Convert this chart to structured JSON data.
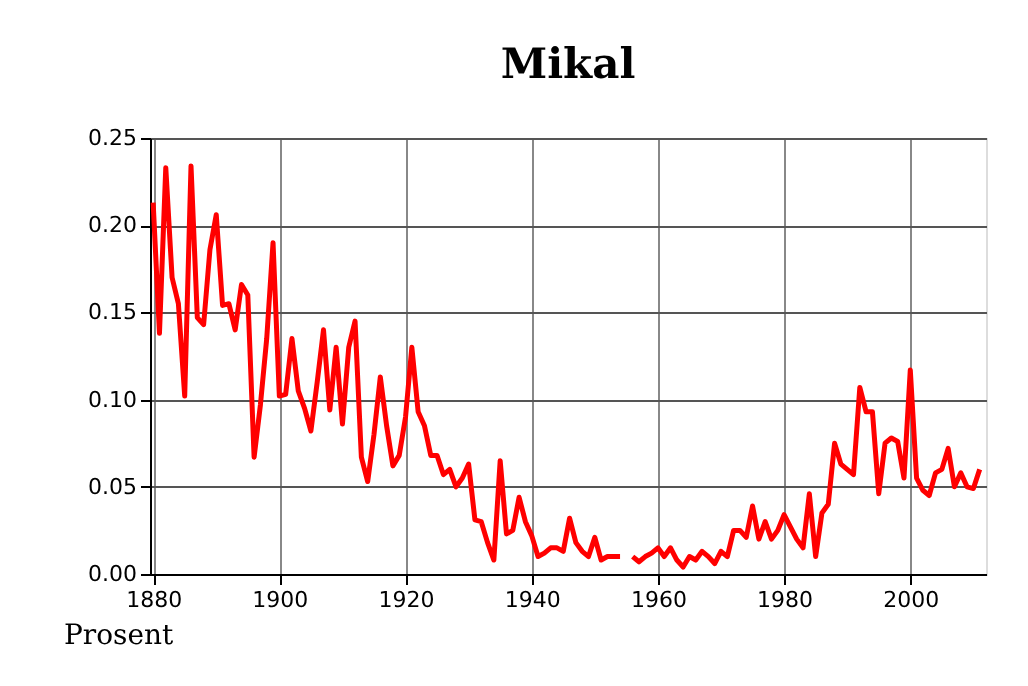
{
  "chart_data": {
    "type": "line",
    "title": "Mikal",
    "annotations": [
      "Prosent"
    ],
    "x": [
      1880,
      1881,
      1882,
      1883,
      1884,
      1885,
      1886,
      1887,
      1888,
      1889,
      1890,
      1891,
      1892,
      1893,
      1894,
      1895,
      1896,
      1897,
      1898,
      1899,
      1900,
      1901,
      1902,
      1903,
      1904,
      1905,
      1906,
      1907,
      1908,
      1909,
      1910,
      1911,
      1912,
      1913,
      1914,
      1915,
      1916,
      1917,
      1918,
      1919,
      1920,
      1921,
      1922,
      1923,
      1924,
      1925,
      1926,
      1927,
      1928,
      1929,
      1930,
      1931,
      1932,
      1933,
      1934,
      1935,
      1936,
      1937,
      1938,
      1939,
      1940,
      1941,
      1942,
      1943,
      1944,
      1945,
      1946,
      1947,
      1948,
      1949,
      1950,
      1951,
      1952,
      1953,
      1954,
      1955,
      1956,
      1957,
      1958,
      1959,
      1960,
      1961,
      1962,
      1963,
      1964,
      1965,
      1966,
      1967,
      1968,
      1969,
      1970,
      1971,
      1972,
      1973,
      1974,
      1975,
      1976,
      1977,
      1978,
      1979,
      1980,
      1981,
      1982,
      1983,
      1984,
      1985,
      1986,
      1987,
      1988,
      1989,
      1990,
      1991,
      1992,
      1993,
      1994,
      1995,
      1996,
      1997,
      1998,
      1999,
      2000,
      2001,
      2002,
      2003,
      2004,
      2005,
      2006,
      2007,
      2008,
      2009,
      2010,
      2011
    ],
    "series": [
      {
        "color": "#ff0000",
        "values": [
          0.213,
          0.138,
          0.233,
          0.17,
          0.155,
          0.102,
          0.234,
          0.147,
          0.143,
          0.186,
          0.206,
          0.154,
          0.155,
          0.14,
          0.166,
          0.16,
          0.067,
          0.097,
          0.135,
          0.19,
          0.102,
          0.103,
          0.135,
          0.105,
          0.095,
          0.082,
          0.11,
          0.14,
          0.094,
          0.13,
          0.086,
          0.13,
          0.145,
          0.067,
          0.053,
          0.08,
          0.113,
          0.085,
          0.062,
          0.068,
          0.09,
          0.13,
          0.093,
          0.085,
          0.068,
          0.068,
          0.057,
          0.06,
          0.05,
          0.055,
          0.063,
          0.031,
          0.03,
          0.018,
          0.008,
          0.065,
          0.023,
          0.025,
          0.044,
          0.03,
          0.022,
          0.01,
          0.012,
          0.015,
          0.015,
          0.013,
          0.032,
          0.018,
          0.013,
          0.01,
          0.021,
          0.008,
          0.01,
          0.01,
          0.01,
          null,
          0.01,
          0.007,
          0.01,
          0.012,
          0.015,
          0.01,
          0.015,
          0.008,
          0.004,
          0.01,
          0.008,
          0.013,
          0.01,
          0.006,
          0.013,
          0.01,
          0.025,
          0.025,
          0.021,
          0.039,
          0.02,
          0.03,
          0.02,
          0.025,
          0.034,
          0.027,
          0.02,
          0.015,
          0.046,
          0.01,
          0.035,
          0.04,
          0.075,
          0.063,
          0.06,
          0.057,
          0.107,
          0.093,
          0.093,
          0.046,
          0.075,
          0.078,
          0.076,
          0.055,
          0.117,
          0.055,
          0.048,
          0.045,
          0.058,
          0.06,
          0.072,
          0.05,
          0.058,
          0.05,
          0.049,
          0.06
        ]
      }
    ],
    "xlim": [
      1879.5,
      2012
    ],
    "xticks": [
      1880,
      1900,
      1920,
      1940,
      1960,
      1980,
      2000
    ],
    "ylim": [
      0,
      0.25
    ],
    "yticks": [
      {
        "value": 0,
        "label": "0.00"
      },
      {
        "value": 0.05,
        "label": "0.05"
      },
      {
        "value": 0.1,
        "label": "0.10"
      },
      {
        "value": 0.15,
        "label": "0.15"
      },
      {
        "value": 0.2,
        "label": "0.20"
      },
      {
        "value": 0.25,
        "label": "0.25"
      }
    ],
    "grid": true,
    "marker": "none",
    "line_style": "solid"
  }
}
